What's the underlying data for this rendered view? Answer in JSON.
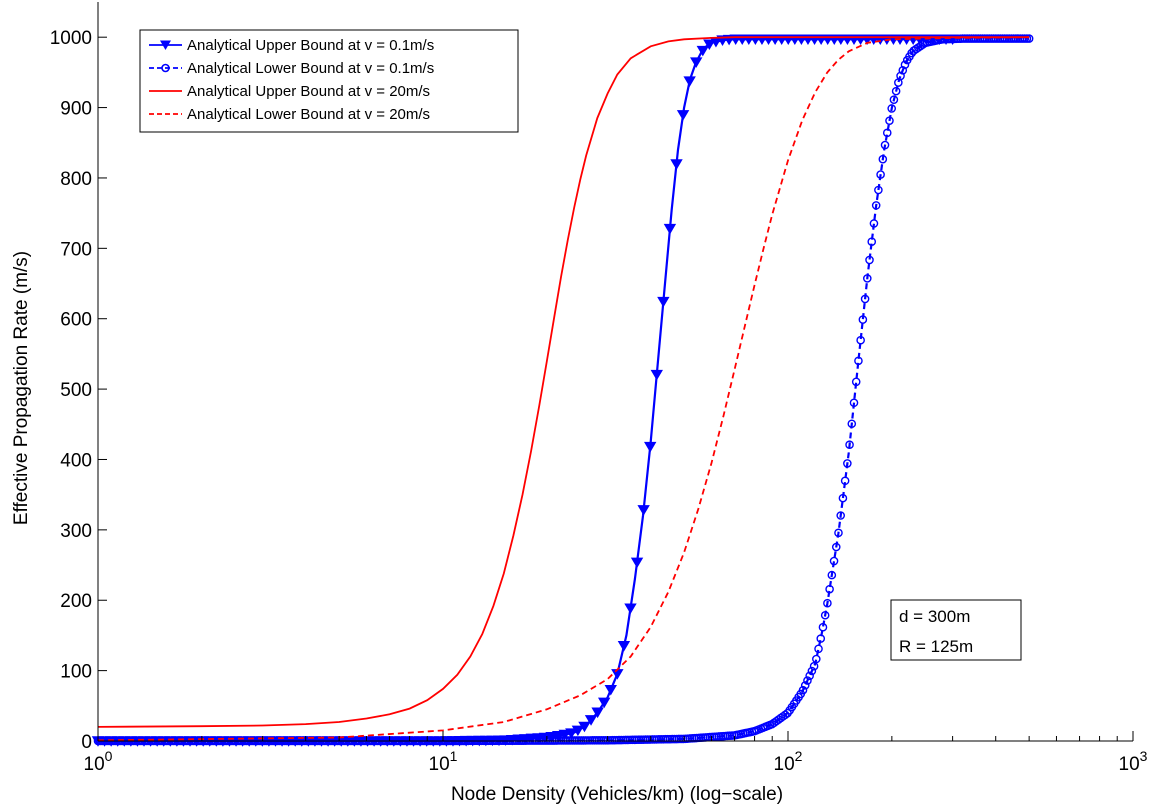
{
  "chart_data": {
    "type": "line",
    "xlabel": "Node Density (Vehicles/km) (log−scale)",
    "ylabel": "Effective Propagation Rate (m/s)",
    "xscale": "log",
    "xlim": [
      1,
      1000
    ],
    "ylim": [
      0,
      1050
    ],
    "x_ticks": [
      {
        "value": 1,
        "base": "10",
        "exp": "0"
      },
      {
        "value": 10,
        "base": "10",
        "exp": "1"
      },
      {
        "value": 100,
        "base": "10",
        "exp": "2"
      },
      {
        "value": 1000,
        "base": "10",
        "exp": "3"
      }
    ],
    "y_ticks": [
      "0",
      "100",
      "200",
      "300",
      "400",
      "500",
      "600",
      "700",
      "800",
      "900",
      "1000"
    ],
    "grid": false,
    "legend_position": "top-left",
    "series": [
      {
        "name": "Analytical Upper Bound at v = 0.1m/s",
        "color": "#0000ff",
        "line": "solid",
        "marker": "triangle-down",
        "x": [
          1,
          5,
          10,
          15,
          20,
          22,
          24,
          26,
          28,
          30,
          32,
          34,
          36,
          38,
          40,
          42,
          44,
          46,
          48,
          50,
          52,
          54,
          56,
          58,
          60,
          65,
          70,
          80,
          100,
          150,
          200,
          300
        ],
        "y": [
          0,
          0,
          0,
          1,
          5,
          8,
          12,
          22,
          40,
          62,
          95,
          150,
          230,
          320,
          425,
          540,
          650,
          755,
          840,
          900,
          940,
          963,
          978,
          987,
          992,
          996,
          997,
          997,
          997,
          997,
          997,
          997
        ]
      },
      {
        "name": "Analytical Lower Bound at v = 0.1m/s",
        "color": "#0000ff",
        "line": "dashed",
        "marker": "circle",
        "x": [
          1,
          10,
          30,
          50,
          70,
          80,
          90,
          100,
          110,
          120,
          125,
          130,
          140,
          150,
          160,
          170,
          180,
          190,
          200,
          210,
          220,
          230,
          250,
          280,
          320,
          400,
          500
        ],
        "y": [
          0,
          0,
          1,
          3,
          8,
          14,
          24,
          40,
          70,
          110,
          150,
          195,
          295,
          410,
          540,
          660,
          760,
          840,
          900,
          940,
          965,
          980,
          992,
          997,
          998,
          998,
          998
        ]
      },
      {
        "name": "Analytical Upper Bound at v = 20m/s",
        "color": "#ff0000",
        "line": "solid",
        "marker": "none",
        "x": [
          1,
          2,
          3,
          4,
          5,
          6,
          7,
          8,
          9,
          10,
          11,
          12,
          13,
          14,
          15,
          16,
          17,
          18,
          19,
          20,
          21,
          22,
          23,
          24,
          25,
          26,
          28,
          30,
          32,
          35,
          40,
          45,
          50,
          60,
          70,
          100,
          500
        ],
        "y": [
          20,
          21,
          22,
          24,
          27,
          32,
          38,
          46,
          58,
          74,
          94,
          120,
          152,
          192,
          238,
          292,
          350,
          412,
          476,
          540,
          602,
          660,
          712,
          758,
          798,
          832,
          885,
          920,
          947,
          970,
          987,
          994,
          997,
          999,
          1000,
          1000,
          1000
        ]
      },
      {
        "name": "Analytical Lower Bound at v = 20m/s",
        "color": "#ff0000",
        "line": "dashed",
        "marker": "none",
        "x": [
          1,
          5,
          10,
          15,
          20,
          25,
          30,
          35,
          40,
          45,
          50,
          55,
          60,
          65,
          70,
          75,
          80,
          85,
          90,
          100,
          110,
          120,
          130,
          140,
          150,
          170,
          200,
          300,
          500
        ],
        "y": [
          1,
          5,
          15,
          27,
          45,
          65,
          88,
          120,
          162,
          212,
          268,
          330,
          395,
          462,
          528,
          590,
          648,
          700,
          748,
          825,
          882,
          922,
          950,
          968,
          980,
          992,
          997,
          999,
          1000
        ]
      }
    ],
    "annotation": [
      "d = 300m",
      "R = 125m"
    ]
  }
}
